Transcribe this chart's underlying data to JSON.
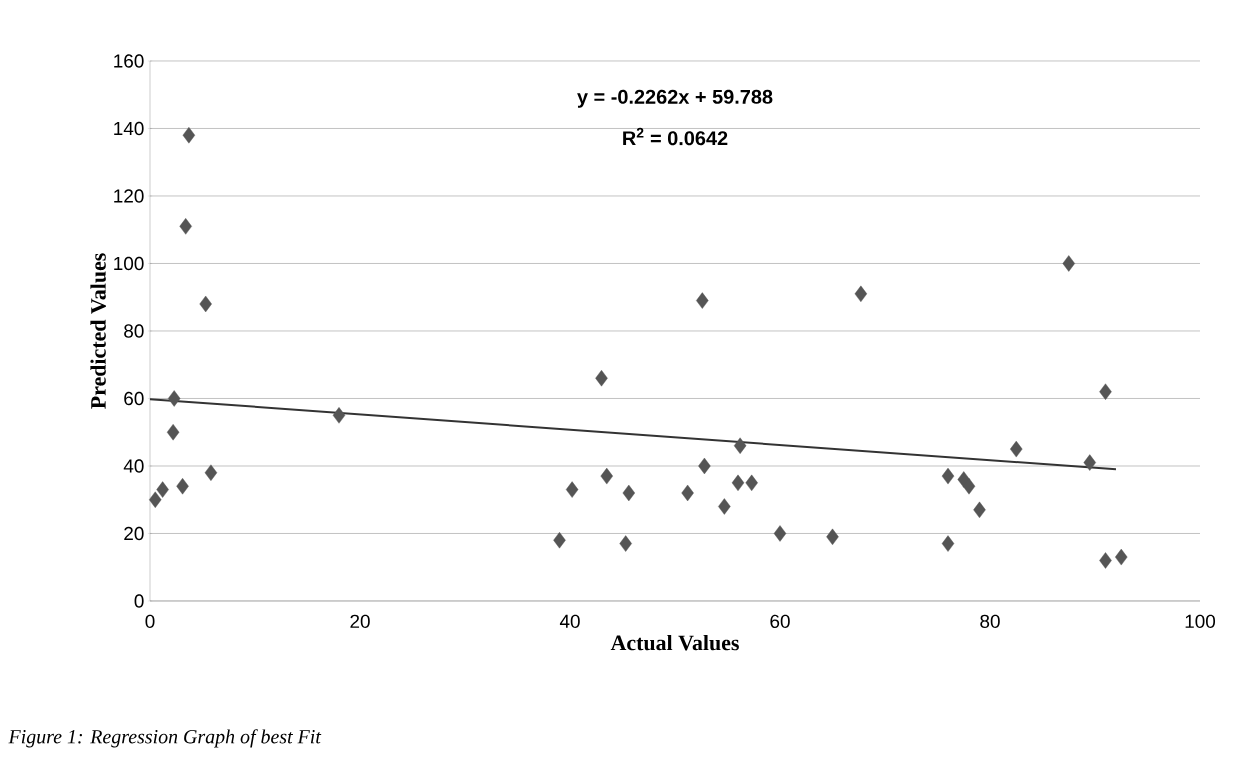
{
  "chart_data": {
    "type": "scatter",
    "xlabel": "Actual Values",
    "ylabel": "Predicted Values",
    "xlim": [
      0,
      100
    ],
    "ylim": [
      0,
      160
    ],
    "xticks": [
      0,
      20,
      40,
      60,
      80,
      100
    ],
    "yticks": [
      0,
      20,
      40,
      60,
      80,
      100,
      120,
      140,
      160
    ],
    "grid": "y",
    "marker": "diamond",
    "series": [
      {
        "color": "#555555",
        "x": [
          0.5,
          1.2,
          2.3,
          2.2,
          3.1,
          3.7,
          3.4,
          5.3,
          5.8,
          18,
          39,
          40.2,
          43,
          43.5,
          45.3,
          45.6,
          51.2,
          52.8,
          52.6,
          54.7,
          56.2,
          56,
          57.3,
          60,
          65,
          67.7,
          76,
          76,
          77.5,
          78,
          79,
          82.5,
          87.5,
          89.5,
          91,
          91,
          92.5
        ],
        "values": [
          30,
          33,
          60,
          50,
          34,
          138,
          111,
          88,
          38,
          55,
          18,
          33,
          66,
          37,
          17,
          32,
          32,
          40,
          89,
          28,
          46,
          35,
          35,
          20,
          19,
          91,
          17,
          37,
          36,
          34,
          27,
          45,
          100,
          41,
          62,
          12,
          13
        ]
      },
      {
        "type": "line",
        "color": "#333333",
        "marker": "none",
        "x": [
          0,
          92
        ],
        "values": [
          59.8,
          39.0
        ]
      }
    ],
    "annotations": [
      "y = -0.2262x + 59.788",
      "R$^{2}$ = 0.0642",
      "*Figure 1: Regression Graph of best Fit*"
    ]
  }
}
